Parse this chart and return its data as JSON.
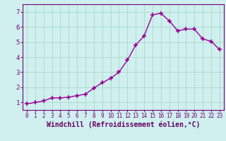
{
  "x": [
    0,
    1,
    2,
    3,
    4,
    5,
    6,
    7,
    8,
    9,
    10,
    11,
    12,
    13,
    14,
    15,
    16,
    17,
    18,
    19,
    20,
    21,
    22,
    23
  ],
  "y": [
    0.9,
    1.0,
    1.1,
    1.3,
    1.3,
    1.35,
    1.45,
    1.55,
    1.95,
    2.3,
    2.6,
    3.0,
    3.8,
    4.8,
    5.4,
    6.8,
    6.9,
    6.4,
    5.75,
    5.85,
    5.85,
    5.2,
    5.05,
    4.5
  ],
  "line_color": "#990099",
  "marker": "+",
  "marker_size": 4.0,
  "marker_lw": 1.2,
  "xlabel": "Windchill (Refroidissement éolien,°C)",
  "xlabel_fontsize": 7,
  "ylabel_ticks": [
    1,
    2,
    3,
    4,
    5,
    6,
    7
  ],
  "xlim": [
    -0.5,
    23.5
  ],
  "ylim": [
    0.5,
    7.5
  ],
  "bg_color": "#cff0ee",
  "grid_color": "#aad8cc",
  "line_width": 1.0,
  "tick_color": "#770077",
  "label_color": "#660066",
  "spine_color": "#770077"
}
